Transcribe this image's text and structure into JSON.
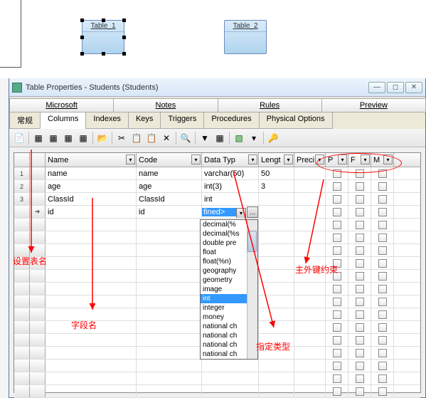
{
  "canvas": {
    "table1_label": "Table_1",
    "table2_label": "Table_2"
  },
  "window": {
    "title": "Table Properties - Students (Students)",
    "tabs_upper": [
      "Microsoft",
      "Notes",
      "Rules",
      "Preview"
    ],
    "tabs_lower": [
      "常规",
      "Columns",
      "Indexes",
      "Keys",
      "Triggers",
      "Procedures",
      "Physical Options"
    ],
    "active_lower_tab": "Columns"
  },
  "grid": {
    "headers": {
      "name": "Name",
      "code": "Code",
      "datatype": "Data Typ",
      "length": "Lengt",
      "precision": "Preci",
      "p": "P",
      "f": "F",
      "m": "M"
    },
    "rows": [
      {
        "num": "1",
        "ind": "",
        "name": "name",
        "code": "name",
        "dt": "varchar(50)",
        "len": "50",
        "prec": "",
        "p": false,
        "f": false,
        "m": false
      },
      {
        "num": "2",
        "ind": "",
        "name": "age",
        "code": "age",
        "dt": "int(3)",
        "len": "3",
        "prec": "",
        "p": false,
        "f": false,
        "m": false
      },
      {
        "num": "3",
        "ind": "",
        "name": "ClassId",
        "code": "ClassId",
        "dt": "int",
        "len": "",
        "prec": "",
        "p": false,
        "f": false,
        "m": false
      },
      {
        "num": "",
        "ind": "➔",
        "name": "id",
        "code": "id",
        "dt": "fined>",
        "len": "",
        "prec": "",
        "p": false,
        "f": false,
        "m": false,
        "editing": true
      }
    ],
    "empty_rows": 14,
    "dropdown_items": [
      "decimal(%",
      "decimal(%s",
      "double pre",
      "float",
      "float(%n)",
      "geography",
      "geometry",
      "image",
      "int",
      "integer",
      "money",
      "national ch",
      "national ch",
      "national ch",
      "national ch"
    ],
    "dropdown_selected": "int"
  },
  "annotations": {
    "a1": "设置表名",
    "a2": "字段名",
    "a3": "主外键约束",
    "a4": "指定类型"
  },
  "colors": {
    "arrow": "#ff0000"
  }
}
